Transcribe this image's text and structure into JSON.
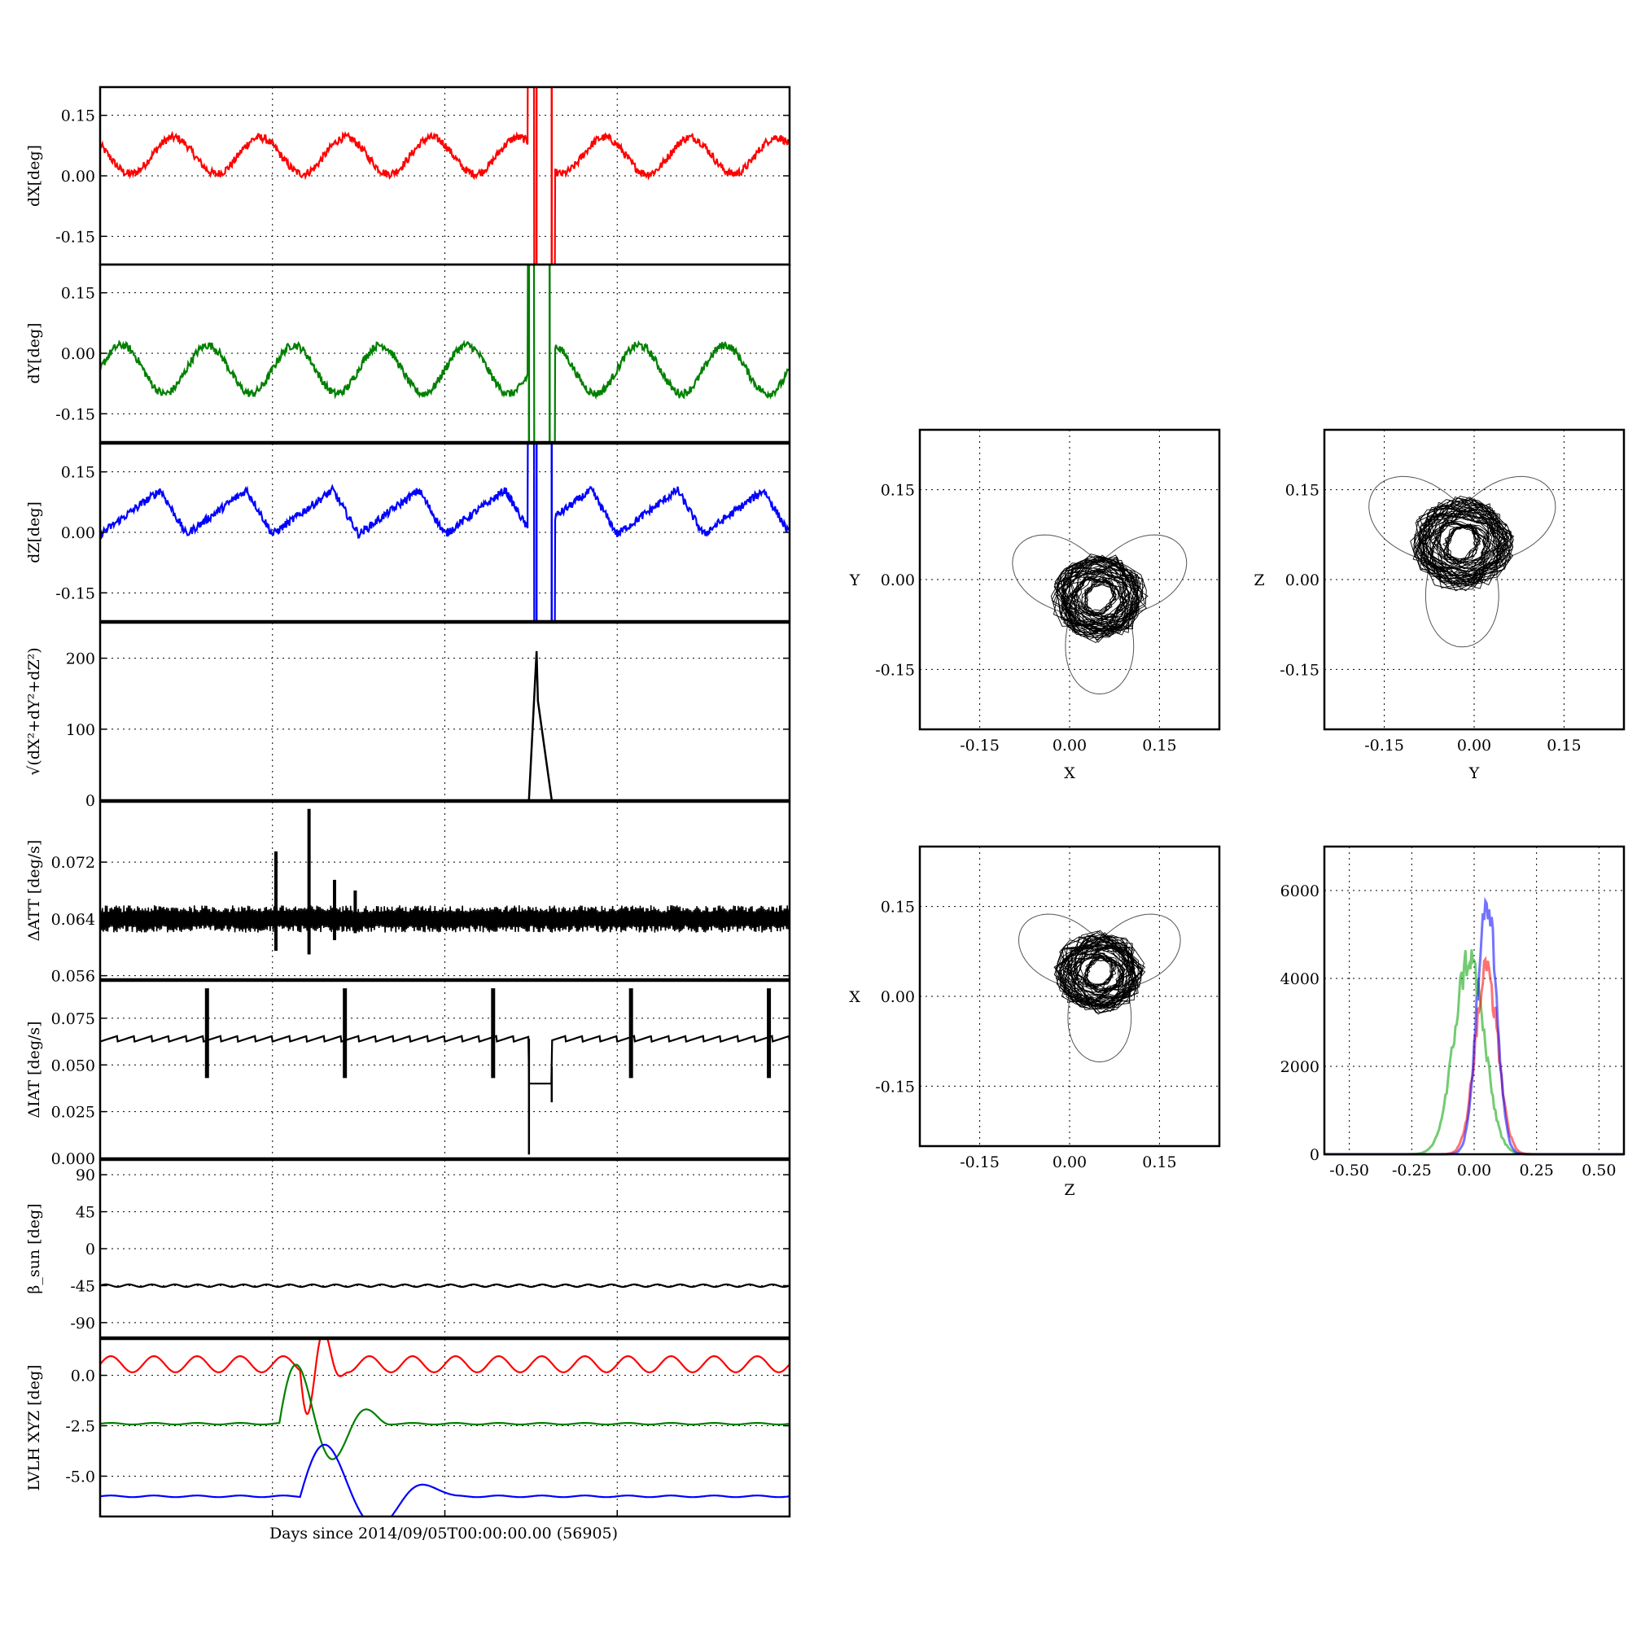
{
  "figure": {
    "xlabel": "Days since 2014/09/05T00:00:00.00 (56905)"
  },
  "chart_data": [
    {
      "type": "line",
      "id": "dx",
      "ylabel": "dX[deg]",
      "ylim": [
        -0.22,
        0.22
      ],
      "yticks": [
        "0.15",
        "0.00",
        "-0.15"
      ],
      "ytick_values": [
        0.15,
        0.0,
        -0.15
      ],
      "color": "#ff0000",
      "grid": true,
      "series": [
        {
          "kind": "oscill",
          "base": 0.05,
          "amp": 0.045,
          "periods": 8,
          "phase": 0.4,
          "noise": 0.01,
          "gap": [
            0.62,
            0.66
          ],
          "spikes": [
            0.633,
            0.655
          ]
        }
      ]
    },
    {
      "type": "line",
      "id": "dy",
      "ylabel": "dY[deg]",
      "ylim": [
        -0.22,
        0.22
      ],
      "yticks": [
        "0.15",
        "0.00",
        "-0.15"
      ],
      "ytick_values": [
        0.15,
        0.0,
        -0.15
      ],
      "color": "#008000",
      "grid": true,
      "series": [
        {
          "kind": "oscill",
          "base": -0.04,
          "amp": 0.06,
          "periods": 8,
          "phase": 0.0,
          "noise": 0.01,
          "gap": [
            0.62,
            0.66
          ],
          "spikes": [
            0.622,
            0.652
          ]
        }
      ]
    },
    {
      "type": "line",
      "id": "dz",
      "ylabel": "dZ[deg]",
      "ylim": [
        -0.22,
        0.22
      ],
      "yticks": [
        "0.15",
        "0.00",
        "-0.15"
      ],
      "ytick_values": [
        0.15,
        0.0,
        -0.15
      ],
      "color": "#0000ff",
      "grid": true,
      "series": [
        {
          "kind": "saw",
          "base": 0.05,
          "amp": 0.055,
          "periods": 8,
          "phase": 0.0,
          "noise": 0.01,
          "gap": [
            0.62,
            0.66
          ],
          "spikes": [
            0.633,
            0.655
          ]
        }
      ]
    },
    {
      "type": "line",
      "id": "mag",
      "ylabel": "√(dX²+dY²+dZ²)",
      "ylim": [
        0,
        250
      ],
      "yticks": [
        "200",
        "100",
        "0"
      ],
      "ytick_values": [
        200,
        100,
        0
      ],
      "color": "#000000",
      "grid": true,
      "points": [
        [
          0.622,
          0
        ],
        [
          0.633,
          210
        ],
        [
          0.635,
          140
        ],
        [
          0.655,
          0
        ]
      ]
    },
    {
      "type": "line",
      "id": "datt",
      "ylabel": "ΔATT [deg/s]",
      "ylim": [
        0.0555,
        0.0805
      ],
      "yticks": [
        "0.072",
        "0.064",
        "0.056"
      ],
      "ytick_values": [
        0.072,
        0.064,
        0.056
      ],
      "color": "#000000",
      "grid": true,
      "series": [
        {
          "kind": "band",
          "base": 0.064,
          "amp": 0.0016,
          "spikes": [
            [
              0.255,
              0.0735,
              0.0595
            ],
            [
              0.303,
              0.0795,
              0.059
            ],
            [
              0.34,
              0.0695,
              0.061
            ],
            [
              0.37,
              0.068,
              0.062
            ]
          ]
        }
      ]
    },
    {
      "type": "line",
      "id": "diat",
      "ylabel": "ΔIAT [deg/s]",
      "ylim": [
        0.0,
        0.095
      ],
      "yticks": [
        "0.075",
        "0.050",
        "0.025",
        "0.000"
      ],
      "ytick_values": [
        0.075,
        0.05,
        0.025,
        0.0
      ],
      "color": "#000000",
      "grid": true,
      "series": [
        {
          "kind": "steps",
          "base": 0.064,
          "bursts": [
            0.155,
            0.355,
            0.57,
            0.77,
            0.97
          ],
          "gap": [
            0.622,
            0.655
          ]
        }
      ]
    },
    {
      "type": "line",
      "id": "beta",
      "ylabel": "β_sun [deg]",
      "ylim": [
        -108,
        108
      ],
      "yticks": [
        "90",
        "45",
        "0",
        "-45",
        "-90"
      ],
      "ytick_values": [
        90,
        45,
        0,
        -45,
        -90
      ],
      "color": "#000000",
      "grid": true,
      "series": [
        {
          "kind": "flat",
          "base": -45,
          "amp": 1.5,
          "periods": 30
        }
      ]
    },
    {
      "type": "line",
      "id": "lvlh",
      "ylabel": "LVLH XYZ [deg]",
      "ylim": [
        -7.0,
        1.8
      ],
      "yticks": [
        "0.0",
        "-2.5",
        "-5.0"
      ],
      "ytick_values": [
        0.0,
        -2.5,
        -5.0
      ],
      "grid": true,
      "series": [
        {
          "name": "",
          "color": "#ff0000",
          "kind": "smooth",
          "base": 0.55,
          "amp": 0.4,
          "periods": 16,
          "disturb": [
            0.29,
            0.36
          ]
        },
        {
          "name": "",
          "color": "#008000",
          "kind": "smooth",
          "base": -2.4,
          "amp": 0.04,
          "periods": 16,
          "disturb": [
            0.26,
            0.42
          ]
        },
        {
          "name": "",
          "color": "#0000ff",
          "kind": "smooth",
          "base": -6.0,
          "amp": 0.04,
          "periods": 16,
          "disturb": [
            0.29,
            0.52
          ]
        }
      ]
    },
    {
      "type": "scatter",
      "id": "xy",
      "xlabel": "X",
      "ylabel": "Y",
      "xlim": [
        -0.25,
        0.25
      ],
      "ylim": [
        -0.25,
        0.25
      ],
      "xticks": [
        "-0.15",
        "0.00",
        "0.15"
      ],
      "yticks": [
        "0.15",
        "0.00",
        "-0.15"
      ],
      "cluster_center": [
        0.05,
        -0.03
      ],
      "cluster_radius": 0.07,
      "grid": true
    },
    {
      "type": "scatter",
      "id": "yz",
      "xlabel": "Y",
      "ylabel": "Z",
      "xlim": [
        -0.25,
        0.25
      ],
      "ylim": [
        -0.25,
        0.25
      ],
      "xticks": [
        "-0.15",
        "0.00",
        "0.15"
      ],
      "yticks": [
        "0.15",
        "0.00",
        "-0.15"
      ],
      "cluster_center": [
        -0.02,
        0.06
      ],
      "cluster_radius": 0.075,
      "grid": true
    },
    {
      "type": "scatter",
      "id": "zx",
      "xlabel": "Z",
      "ylabel": "X",
      "xlim": [
        -0.25,
        0.25
      ],
      "ylim": [
        -0.25,
        0.25
      ],
      "xticks": [
        "-0.15",
        "0.00",
        "0.15"
      ],
      "yticks": [
        "0.15",
        "0.00",
        "-0.15"
      ],
      "cluster_center": [
        0.05,
        0.04
      ],
      "cluster_radius": 0.065,
      "grid": true
    },
    {
      "type": "line",
      "id": "hist",
      "xlim": [
        -0.6,
        0.6
      ],
      "ylim": [
        0,
        7000
      ],
      "xticks": [
        "-0.50",
        "-0.25",
        "0.00",
        "0.25",
        "0.50"
      ],
      "xtick_values": [
        -0.5,
        -0.25,
        0.0,
        0.25,
        0.5
      ],
      "yticks": [
        "6000",
        "4000",
        "2000",
        "0"
      ],
      "ytick_values": [
        6000,
        4000,
        2000,
        0
      ],
      "grid": true,
      "series": [
        {
          "name": "",
          "color": "#00a000",
          "center": -0.02,
          "width": 0.06,
          "peak": 4900
        },
        {
          "name": "",
          "color": "#ff0000",
          "center": 0.05,
          "width": 0.045,
          "peak": 4600
        },
        {
          "name": "",
          "color": "#0000ff",
          "center": 0.05,
          "width": 0.038,
          "peak": 6400
        }
      ]
    }
  ]
}
